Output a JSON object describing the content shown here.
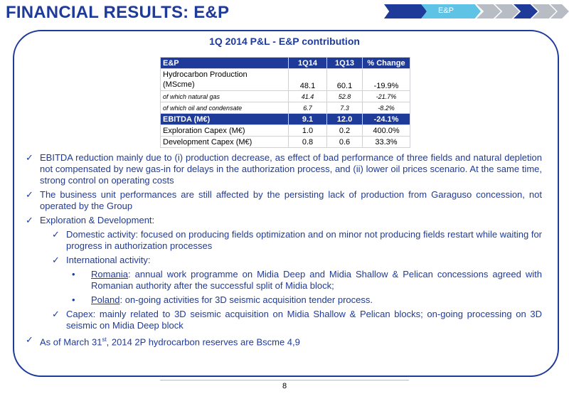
{
  "title": {
    "main": "FINANCIAL RESULTS: ",
    "accent": "E&P"
  },
  "nav": {
    "label": "E&P"
  },
  "panel_title": "1Q 2014 P&L - E&P contribution",
  "table": {
    "headers": [
      "E&P",
      "1Q14",
      "1Q13",
      "% Change"
    ],
    "rows": [
      {
        "label_line1": "Hydrocarbon Production",
        "label_line2": "(MScme)",
        "c1": "48.1",
        "c2": "60.1",
        "c3": "-19.9%"
      },
      {
        "label": "of which natural gas",
        "c1": "41.4",
        "c2": "52.8",
        "c3": "-21.7%"
      },
      {
        "label": "of which oil and condensate",
        "c1": "6.7",
        "c2": "7.3",
        "c3": "-8.2%"
      },
      {
        "label": "EBITDA (M€)",
        "c1": "9.1",
        "c2": "12.0",
        "c3": "-24.1%"
      },
      {
        "label": "Exploration Capex (M€)",
        "c1": "1.0",
        "c2": "0.2",
        "c3": "400.0%"
      },
      {
        "label": "Development Capex (M€)",
        "c1": "0.8",
        "c2": "0.6",
        "c3": "33.3%"
      }
    ]
  },
  "bullets": {
    "check": "✓",
    "dot": "•",
    "b1": "EBITDA reduction mainly due to (i) production decrease, as effect of bad performance of three fields and natural depletion not compensated by new gas-in for delays in the authorization process, and (ii) lower oil prices scenario. At the same time, strong control on operating costs",
    "b2": "The business unit performances are still affected by the persisting lack of production from Garaguso concession, not operated by the Group",
    "b3": "Exploration & Development:",
    "b3_1": "Domestic activity: focused on producing fields optimization and on minor not producing fields restart while waiting for progress in authorization processes",
    "b3_2": "International activity:",
    "b3_2_1_country": "Romania",
    "b3_2_1_text": ": annual work programme on Midia Deep and Midia Shallow & Pelican concessions agreed with Romanian authority after the successful split of Midia block;",
    "b3_2_2_country": "Poland",
    "b3_2_2_text": ": on-going activities for 3D seismic acquisition tender process.",
    "b3_3": "Capex: mainly related to 3D seismic acquisition on Midia Shallow & Pelican blocks; on-going processing on 3D seismic on Midia Deep block",
    "b4_pre": "As of March 31",
    "b4_sup": "st",
    "b4_post": ", 2014 2P hydrocarbon reserves are Bscme 4,9"
  },
  "page_number": "8"
}
